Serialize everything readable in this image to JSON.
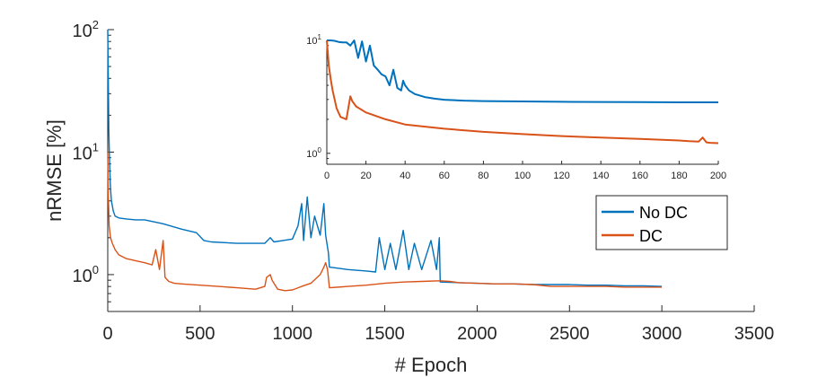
{
  "chart_data": [
    {
      "type": "line",
      "title": "",
      "xlabel": "# Epoch",
      "ylabel": "nRMSE [%]",
      "yscale": "log",
      "xlim": [
        0,
        3500
      ],
      "ylim": [
        0.5,
        100
      ],
      "xticks": [
        0,
        500,
        1000,
        1500,
        2000,
        2500,
        3000,
        3500
      ],
      "yticks": [
        {
          "value": 1,
          "base": "10",
          "exp": "0"
        },
        {
          "value": 10,
          "base": "10",
          "exp": "1"
        },
        {
          "value": 100,
          "base": "10",
          "exp": "2"
        }
      ],
      "legend": {
        "location": "right",
        "entries": [
          "No DC",
          "DC"
        ]
      },
      "series": [
        {
          "name": "No DC",
          "color": "#0072BD",
          "x": [
            0,
            3,
            6,
            10,
            15,
            20,
            30,
            40,
            60,
            100,
            150,
            200,
            300,
            400,
            480,
            520,
            560,
            700,
            850,
            880,
            900,
            950,
            1000,
            1030,
            1050,
            1060,
            1080,
            1100,
            1120,
            1150,
            1170,
            1180,
            1195,
            1200,
            1300,
            1400,
            1450,
            1470,
            1500,
            1530,
            1560,
            1600,
            1630,
            1660,
            1700,
            1750,
            1780,
            1795,
            1800,
            1900,
            2000,
            2100,
            2200,
            2300,
            2400,
            2500,
            2600,
            2700,
            2800,
            2900,
            3000
          ],
          "y": [
            100,
            40,
            15,
            8,
            5,
            4,
            3.3,
            3.0,
            2.9,
            2.85,
            2.8,
            2.8,
            2.6,
            2.35,
            2.2,
            1.9,
            1.85,
            1.8,
            1.8,
            2.0,
            1.85,
            1.9,
            1.95,
            2.5,
            3.8,
            1.9,
            4.3,
            2.0,
            3.0,
            2.1,
            3.8,
            2.1,
            1.5,
            1.15,
            1.1,
            1.07,
            1.05,
            2.0,
            1.1,
            1.8,
            1.1,
            2.3,
            1.1,
            1.8,
            1.1,
            1.9,
            1.1,
            2.0,
            0.87,
            0.86,
            0.85,
            0.84,
            0.84,
            0.83,
            0.83,
            0.83,
            0.82,
            0.82,
            0.81,
            0.81,
            0.8
          ]
        },
        {
          "name": "DC",
          "color": "#D95319",
          "x": [
            0,
            3,
            8,
            15,
            25,
            40,
            60,
            100,
            150,
            200,
            240,
            260,
            280,
            300,
            310,
            330,
            360,
            400,
            500,
            600,
            700,
            800,
            850,
            860,
            880,
            890,
            920,
            960,
            1000,
            1050,
            1100,
            1150,
            1170,
            1180,
            1190,
            1200,
            1300,
            1400,
            1500,
            1600,
            1700,
            1800,
            1850,
            1900,
            2000,
            2100,
            2200,
            2300,
            2400,
            2500,
            2600,
            2700,
            2800,
            2900,
            3000
          ],
          "y": [
            10,
            4.5,
            2.5,
            2.0,
            1.8,
            1.6,
            1.45,
            1.35,
            1.3,
            1.25,
            1.2,
            1.6,
            1.1,
            1.9,
            0.95,
            0.88,
            0.85,
            0.84,
            0.82,
            0.8,
            0.78,
            0.76,
            0.8,
            0.95,
            1.0,
            0.9,
            0.76,
            0.74,
            0.75,
            0.8,
            0.85,
            1.0,
            1.15,
            1.25,
            1.1,
            0.78,
            0.8,
            0.82,
            0.85,
            0.87,
            0.88,
            0.89,
            0.88,
            0.86,
            0.85,
            0.84,
            0.84,
            0.83,
            0.8,
            0.8,
            0.8,
            0.8,
            0.79,
            0.79,
            0.79
          ]
        }
      ]
    },
    {
      "type": "line",
      "title": "",
      "xlabel": "",
      "ylabel": "",
      "yscale": "log",
      "xlim": [
        0,
        200
      ],
      "ylim": [
        0.8,
        10
      ],
      "xticks": [
        0,
        20,
        40,
        60,
        80,
        100,
        120,
        140,
        160,
        180,
        200
      ],
      "yticks": [
        {
          "value": 1,
          "base": "10",
          "exp": "0"
        },
        {
          "value": 10,
          "base": "10",
          "exp": "1"
        }
      ],
      "series": [
        {
          "name": "No DC",
          "color": "#0072BD",
          "x": [
            0,
            2,
            4,
            6,
            8,
            10,
            12,
            14,
            16,
            18,
            20,
            22,
            24,
            26,
            28,
            30,
            32,
            34,
            36,
            38,
            39,
            40,
            42,
            45,
            50,
            55,
            60,
            70,
            80,
            100,
            120,
            140,
            160,
            180,
            200
          ],
          "y": [
            10,
            10,
            9.9,
            9.7,
            9.6,
            9.6,
            9.0,
            10,
            7.0,
            9.8,
            6.5,
            9.0,
            6.0,
            5.5,
            5.0,
            4.8,
            4.0,
            5.5,
            3.8,
            3.6,
            4.4,
            4.0,
            3.6,
            3.35,
            3.15,
            3.05,
            2.98,
            2.93,
            2.9,
            2.88,
            2.86,
            2.85,
            2.84,
            2.83,
            2.83
          ]
        },
        {
          "name": "DC",
          "color": "#D95319",
          "x": [
            0,
            1,
            2,
            3,
            5,
            7,
            10,
            12,
            13,
            15,
            20,
            30,
            40,
            60,
            80,
            100,
            120,
            140,
            160,
            180,
            185,
            190,
            192,
            194,
            196,
            200
          ],
          "y": [
            10,
            6.0,
            4.5,
            3.6,
            2.5,
            2.1,
            2.0,
            3.2,
            2.9,
            2.6,
            2.3,
            2.0,
            1.8,
            1.65,
            1.55,
            1.48,
            1.42,
            1.38,
            1.34,
            1.3,
            1.28,
            1.27,
            1.38,
            1.25,
            1.24,
            1.23
          ]
        }
      ]
    }
  ]
}
